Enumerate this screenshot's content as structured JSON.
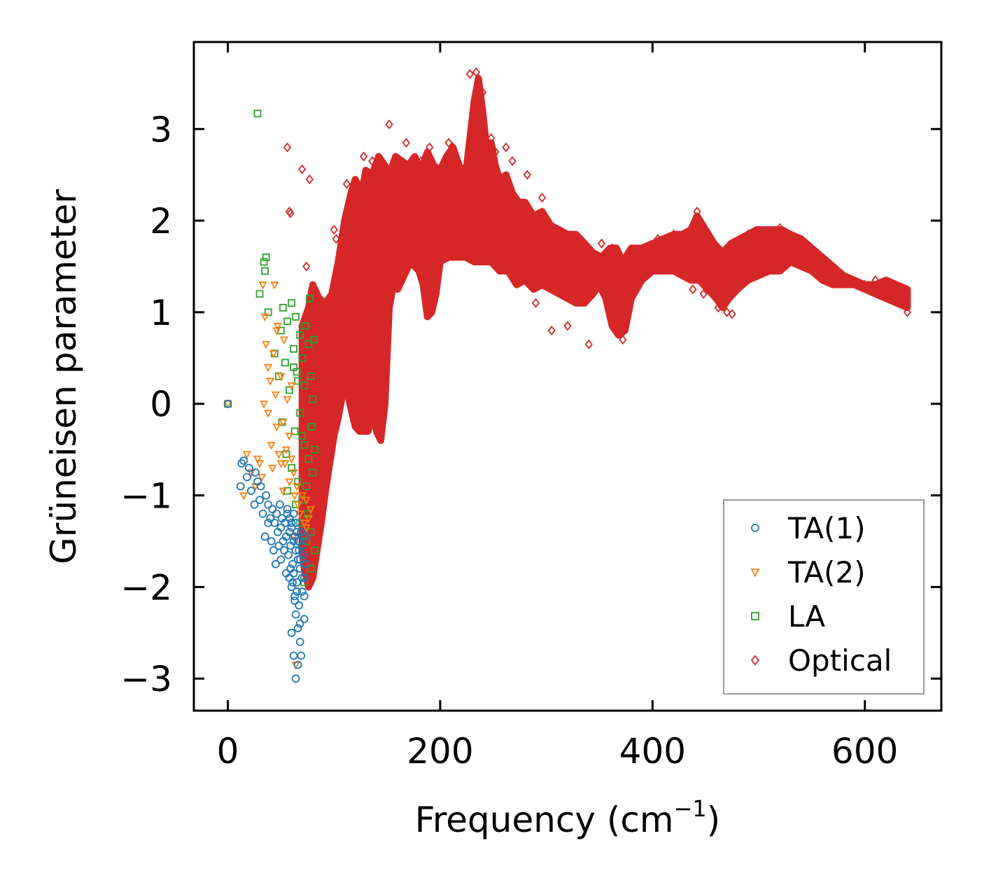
{
  "chart_data": {
    "type": "scatter",
    "title": "",
    "xlabel": "Frequency (cm",
    "xlabel_sup": "−1",
    "xlabel_suffix": ")",
    "ylabel": "Grüneisen parameter",
    "xlim": [
      -32,
      672
    ],
    "ylim": [
      -3.35,
      3.95
    ],
    "x_ticks": [
      0,
      200,
      400,
      600
    ],
    "x_tick_labels": [
      "0",
      "200",
      "400",
      "600"
    ],
    "y_ticks": [
      -3,
      -2,
      -1,
      0,
      1,
      2,
      3
    ],
    "y_tick_labels": [
      "−3",
      "−2",
      "−1",
      "0",
      "1",
      "2",
      "3"
    ],
    "legend_position": "lower-right",
    "series": [
      {
        "name": "TA(1)",
        "marker": "circle",
        "color": "#1f77b4",
        "x": [
          0,
          12,
          13,
          15,
          18,
          20,
          22,
          25,
          26,
          28,
          30,
          31,
          33,
          35,
          36,
          38,
          38,
          40,
          41,
          42,
          43,
          44,
          45,
          46,
          47,
          48,
          49,
          50,
          50,
          51,
          52,
          53,
          54,
          55,
          55,
          56,
          57,
          58,
          58,
          59,
          60,
          60,
          61,
          62,
          62,
          63,
          63,
          64,
          64,
          65,
          65,
          66,
          66,
          67,
          67,
          68,
          68,
          69,
          70,
          70,
          71,
          72,
          72,
          73,
          74,
          56,
          58,
          60,
          62,
          64,
          66,
          68,
          70,
          72,
          60,
          62,
          64,
          66,
          68,
          59,
          61,
          63,
          65,
          67,
          69
        ],
        "y": [
          0,
          -0.9,
          -0.65,
          -0.62,
          -0.8,
          -0.7,
          -0.95,
          -1.1,
          -0.75,
          -0.85,
          -1.05,
          -0.9,
          -1.2,
          -1.45,
          -1.0,
          -1.3,
          -1.1,
          -1.25,
          -1.5,
          -1.15,
          -1.6,
          -1.3,
          -1.75,
          -1.2,
          -1.4,
          -1.55,
          -1.1,
          -1.35,
          -1.7,
          -1.25,
          -1.5,
          -1.6,
          -1.3,
          -1.85,
          -1.45,
          -1.2,
          -1.65,
          -1.9,
          -1.4,
          -1.55,
          -1.3,
          -2.0,
          -1.75,
          -1.5,
          -1.85,
          -1.45,
          -2.1,
          -1.6,
          -2.3,
          -1.4,
          -1.95,
          -2.45,
          -1.7,
          -2.2,
          -1.5,
          -2.6,
          -1.8,
          -2.75,
          -1.55,
          -2.05,
          -1.65,
          -1.9,
          -2.35,
          -1.45,
          -1.75,
          -1.15,
          -1.25,
          -1.35,
          -1.2,
          -1.3,
          -1.5,
          -1.7,
          -1.9,
          -2.1,
          -2.5,
          -2.75,
          -3.0,
          -2.85,
          -2.4,
          -1.8,
          -1.95,
          -2.15,
          -2.05,
          -1.6,
          -1.4
        ]
      },
      {
        "name": "TA(2)",
        "marker": "triangle-down",
        "color": "#ff7f0e",
        "x": [
          0,
          15,
          18,
          22,
          26,
          28,
          30,
          32,
          33,
          35,
          36,
          38,
          38,
          40,
          41,
          42,
          43,
          45,
          46,
          47,
          48,
          50,
          50,
          52,
          53,
          55,
          56,
          58,
          58,
          60,
          60,
          62,
          63,
          65,
          66,
          68,
          70,
          72,
          74,
          76,
          78,
          44,
          54,
          64,
          74,
          34,
          46,
          52,
          62
        ],
        "y": [
          0,
          -1.0,
          -0.55,
          -0.75,
          -0.9,
          -0.6,
          -0.65,
          -0.8,
          1.3,
          0.95,
          0.65,
          0.4,
          -0.1,
          0.25,
          -0.45,
          -0.7,
          0.55,
          0.1,
          -0.25,
          0.85,
          -0.55,
          0.3,
          -0.65,
          -0.2,
          0.7,
          -0.5,
          0.05,
          -0.35,
          -0.85,
          -0.6,
          0.2,
          -0.75,
          -1.0,
          -0.9,
          -1.1,
          -1.2,
          -1.0,
          -1.3,
          -1.35,
          -1.25,
          -1.15,
          1.3,
          -0.65,
          -2.85,
          -1.05,
          0.0,
          0.8,
          -0.95,
          -1.45
        ]
      },
      {
        "name": "LA",
        "marker": "square",
        "color": "#2ca02c",
        "x": [
          0,
          28,
          30,
          34,
          35,
          36,
          38,
          44,
          48,
          50,
          51,
          52,
          54,
          55,
          56,
          58,
          60,
          60,
          62,
          63,
          64,
          65,
          66,
          68,
          68,
          70,
          70,
          72,
          72,
          73,
          74,
          75,
          76,
          76,
          77,
          78,
          78,
          79,
          80,
          80,
          81,
          82,
          82,
          56,
          62,
          66,
          70,
          74,
          78,
          64,
          68,
          72
        ],
        "y": [
          0,
          3.17,
          1.2,
          1.55,
          1.45,
          1.6,
          1.0,
          0.55,
          0.3,
          0.8,
          -0.2,
          1.05,
          0.45,
          -0.55,
          0.9,
          0.15,
          1.1,
          -0.7,
          0.6,
          -0.3,
          0.95,
          0.35,
          -0.85,
          0.75,
          -0.1,
          0.5,
          -1.05,
          0.2,
          -0.45,
          0.85,
          -0.9,
          -1.2,
          0.65,
          -0.6,
          1.15,
          -1.4,
          0.3,
          -0.25,
          -0.75,
          0.05,
          0.7,
          -1.6,
          -0.5,
          -0.95,
          0.4,
          0.25,
          -0.35,
          -1.5,
          -1.8,
          -1.1,
          -1.3,
          -1.95
        ]
      },
      {
        "name": "Optical",
        "marker": "diamond",
        "color": "#d62728",
        "x": [
          56,
          58,
          59,
          70,
          74,
          77,
          100,
          102,
          112,
          128,
          136,
          152,
          168,
          175,
          182,
          190,
          208,
          212,
          228,
          234,
          236,
          240,
          248,
          252,
          262,
          268,
          282,
          290,
          296,
          305,
          312,
          320,
          340,
          352,
          362,
          372,
          392,
          405,
          420,
          438,
          442,
          448,
          462,
          470,
          475,
          490,
          520,
          530,
          560,
          600,
          610,
          640
        ],
        "y": [
          2.8,
          2.1,
          2.08,
          2.56,
          1.5,
          2.45,
          1.9,
          1.8,
          2.4,
          2.7,
          2.65,
          3.05,
          2.85,
          2.55,
          2.65,
          2.8,
          2.85,
          2.8,
          3.6,
          3.62,
          3.55,
          3.4,
          2.9,
          2.75,
          2.8,
          2.65,
          2.5,
          1.1,
          2.25,
          0.8,
          1.5,
          0.85,
          0.65,
          1.75,
          1.7,
          0.7,
          1.7,
          1.8,
          1.85,
          1.25,
          2.1,
          1.2,
          1.05,
          1.0,
          0.98,
          1.85,
          1.92,
          1.8,
          1.45,
          1.3,
          1.35,
          1.0
        ]
      }
    ],
    "optical_band": {
      "upper_x": [
        70,
        76,
        80,
        86,
        92,
        98,
        104,
        110,
        116,
        120,
        126,
        130,
        136,
        142,
        148,
        152,
        158,
        164,
        170,
        176,
        182,
        188,
        194,
        200,
        206,
        212,
        218,
        224,
        228,
        232,
        236,
        240,
        244,
        248,
        252,
        256,
        262,
        268,
        274,
        280,
        288,
        296,
        304,
        312,
        320,
        328,
        336,
        344,
        352,
        360,
        366,
        372,
        380,
        390,
        400,
        410,
        420,
        428,
        436,
        442,
        450,
        458,
        466,
        474,
        482,
        490,
        498,
        506,
        514,
        522,
        530,
        540,
        550,
        560,
        570,
        580,
        590,
        600,
        610,
        620,
        630,
        640
      ],
      "upper_y": [
        0.85,
        1.05,
        1.3,
        1.15,
        1.1,
        1.2,
        1.55,
        2.0,
        2.3,
        2.45,
        2.3,
        2.55,
        2.5,
        2.7,
        2.6,
        2.5,
        2.7,
        2.65,
        2.6,
        2.7,
        2.55,
        2.75,
        2.6,
        2.55,
        2.7,
        2.8,
        2.6,
        2.5,
        2.9,
        3.3,
        3.55,
        3.2,
        2.75,
        2.85,
        2.6,
        2.45,
        2.5,
        2.3,
        2.2,
        2.2,
        2.05,
        2.1,
        1.95,
        1.9,
        1.85,
        1.85,
        1.75,
        1.65,
        1.6,
        1.7,
        1.7,
        1.55,
        1.7,
        1.7,
        1.75,
        1.8,
        1.85,
        1.85,
        1.9,
        2.05,
        1.9,
        1.75,
        1.65,
        1.75,
        1.8,
        1.85,
        1.9,
        1.9,
        1.9,
        1.9,
        1.85,
        1.8,
        1.7,
        1.6,
        1.5,
        1.4,
        1.35,
        1.3,
        1.3,
        1.35,
        1.3,
        1.25
      ],
      "lower_x": [
        640,
        630,
        620,
        610,
        600,
        590,
        580,
        570,
        560,
        550,
        540,
        530,
        520,
        510,
        500,
        490,
        480,
        472,
        466,
        460,
        452,
        444,
        436,
        428,
        420,
        410,
        400,
        390,
        380,
        374,
        368,
        362,
        356,
        350,
        344,
        336,
        328,
        320,
        312,
        304,
        296,
        288,
        280,
        272,
        264,
        256,
        248,
        240,
        232,
        224,
        216,
        208,
        200,
        196,
        192,
        188,
        184,
        180,
        176,
        172,
        168,
        164,
        160,
        156,
        152,
        148,
        144,
        140,
        136,
        132,
        128,
        124,
        120,
        116,
        112,
        108,
        104,
        100,
        96,
        92,
        88,
        84,
        80,
        76,
        72,
        70
      ],
      "lower_y": [
        1.05,
        1.1,
        1.15,
        1.2,
        1.25,
        1.3,
        1.3,
        1.3,
        1.35,
        1.45,
        1.5,
        1.55,
        1.45,
        1.45,
        1.4,
        1.35,
        1.25,
        1.15,
        1.05,
        1.15,
        1.25,
        1.35,
        1.35,
        1.4,
        1.45,
        1.45,
        1.45,
        1.35,
        1.15,
        0.8,
        0.75,
        0.85,
        1.15,
        1.3,
        1.2,
        1.1,
        1.1,
        1.15,
        1.2,
        1.25,
        1.3,
        1.25,
        1.35,
        1.3,
        1.45,
        1.45,
        1.55,
        1.55,
        1.55,
        1.6,
        1.6,
        1.6,
        1.55,
        1.2,
        1.0,
        0.95,
        1.3,
        1.45,
        1.5,
        1.55,
        1.45,
        1.35,
        1.25,
        1.3,
        1.05,
        0.0,
        -0.4,
        -0.3,
        -0.1,
        -0.3,
        -0.3,
        -0.3,
        -0.25,
        -0.05,
        0.15,
        0.1,
        -0.15,
        -0.35,
        -0.65,
        -0.95,
        -1.3,
        -1.6,
        -1.9,
        -2.0,
        -1.8,
        -1.6
      ]
    }
  }
}
